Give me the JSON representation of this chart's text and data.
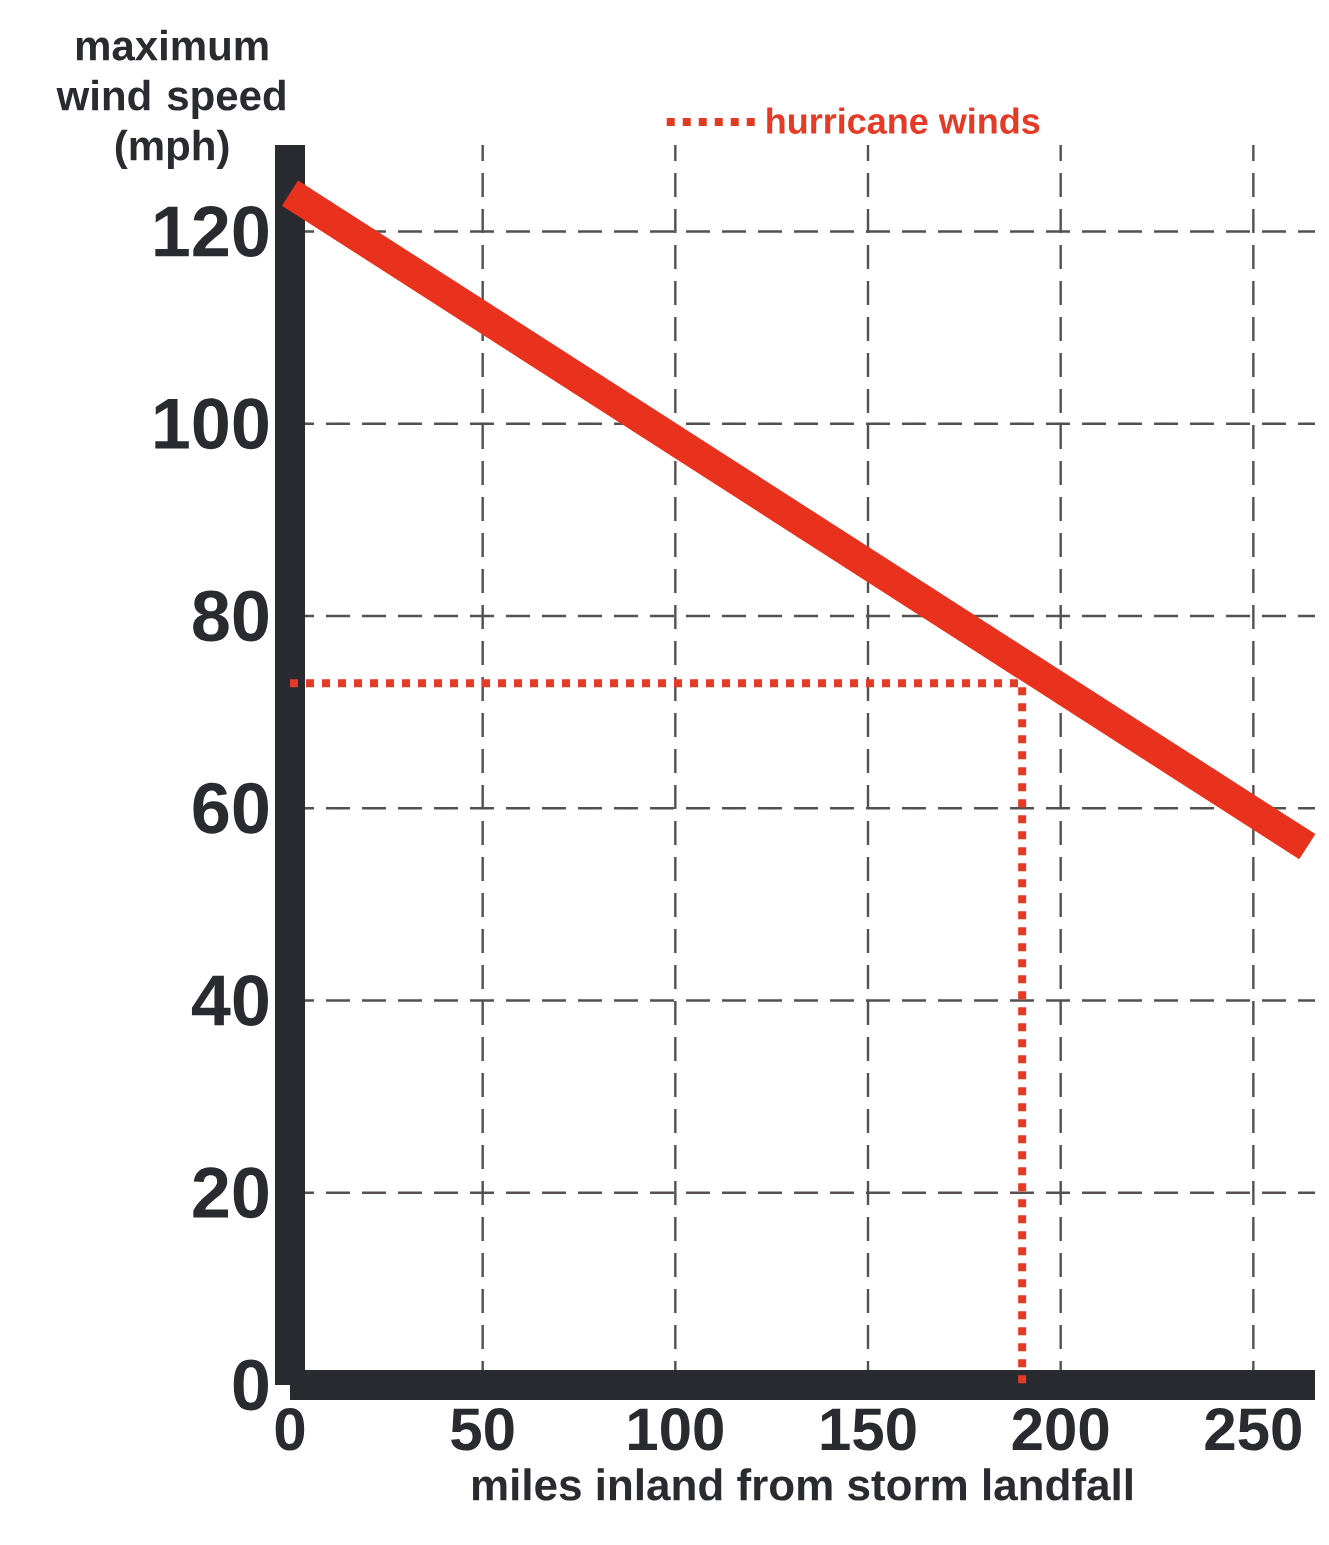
{
  "chart_data": {
    "type": "line",
    "xlabel": "miles inland from storm landfall",
    "ylabel": "maximum wind speed (mph)",
    "xlim": [
      0,
      266
    ],
    "ylim": [
      0,
      129
    ],
    "xticks": [
      0,
      50,
      100,
      150,
      200,
      250
    ],
    "yticks": [
      0,
      20,
      40,
      60,
      80,
      100,
      120
    ],
    "grid": true,
    "legend": "top",
    "series": [
      {
        "name": "hurricane winds",
        "color": "#e53a25",
        "line_style": "dotted",
        "x": [
          0,
          190,
          190
        ],
        "values": [
          73,
          73,
          0
        ]
      },
      {
        "color": "#e8321e",
        "line_style": "solid",
        "x": [
          0,
          264
        ],
        "values": [
          124,
          56
        ]
      }
    ]
  }
}
